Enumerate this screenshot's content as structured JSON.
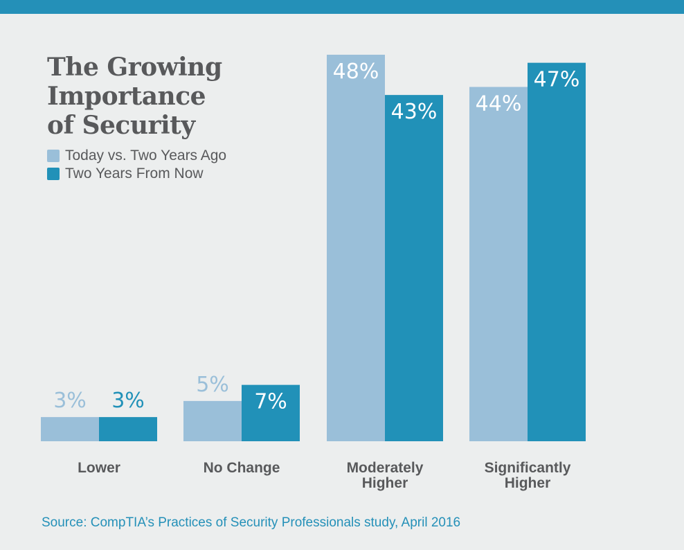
{
  "title_lines": [
    "The Growing",
    "Importance",
    "of Security"
  ],
  "source": "Source: CompTIA’s Practices of Security Professionals study, April 2016",
  "colors": {
    "top_bar": "#2490b8",
    "series_light": "#9abfd9",
    "series_dark": "#2191b8",
    "label_text": "#58595b",
    "background": "#eceeee"
  },
  "chart_data": {
    "type": "bar",
    "title": "The Growing Importance of Security",
    "categories": [
      [
        "Lower"
      ],
      [
        "No Change"
      ],
      [
        "Moderately",
        "Higher"
      ],
      [
        "Significantly",
        "Higher"
      ]
    ],
    "series": [
      {
        "name": "Today vs. Two Years Ago",
        "color": "#9abfd9",
        "values": [
          3,
          5,
          48,
          44
        ],
        "labels": [
          "3%",
          "5%",
          "48%",
          "44%"
        ]
      },
      {
        "name": "Two Years From Now",
        "color": "#2191b8",
        "values": [
          3,
          7,
          43,
          47
        ],
        "labels": [
          "3%",
          "7%",
          "43%",
          "47%"
        ]
      }
    ],
    "ylim": [
      0,
      48
    ],
    "grid": false,
    "legend_position": "top-left",
    "xlabel": "",
    "ylabel": ""
  }
}
